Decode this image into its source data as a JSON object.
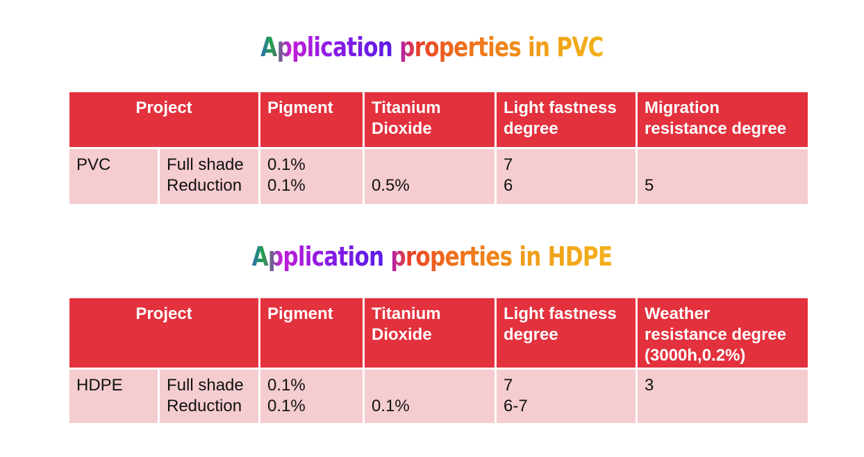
{
  "sections": [
    {
      "title": {
        "word1": "Application",
        "word2": "properties",
        "word3": "in PVC"
      },
      "headers": {
        "project": "Project",
        "pigment": "Pigment",
        "titanium_1": "Titanium",
        "titanium_2": "Dioxide",
        "light_1": "Light fastness",
        "light_2": "degree",
        "last_1": "Migration",
        "last_2": "resistance degree",
        "last_3": ""
      },
      "row": {
        "material": "PVC",
        "type_1": "Full shade",
        "type_2": "Reduction",
        "pigment_1": "0.1%",
        "pigment_2": "0.1%",
        "titanium_1": "",
        "titanium_2": "0.5%",
        "light_1": "7",
        "light_2": "6",
        "last_1": "",
        "last_2": "5"
      }
    },
    {
      "title": {
        "word1": "Application",
        "word2": "properties",
        "word3": "in HDPE"
      },
      "headers": {
        "project": "Project",
        "pigment": "Pigment",
        "titanium_1": "Titanium",
        "titanium_2": "Dioxide",
        "light_1": "Light fastness",
        "light_2": "degree",
        "last_1": "Weather",
        "last_2": "resistance degree",
        "last_3": "(3000h,0.2%)"
      },
      "row": {
        "material": "HDPE",
        "type_1": "Full shade",
        "type_2": "Reduction",
        "pigment_1": "0.1%",
        "pigment_2": "0.1%",
        "titanium_1": "",
        "titanium_2": "0.1%",
        "light_1": "7",
        "light_2": "6-7",
        "last_1": "3",
        "last_2": ""
      }
    }
  ],
  "colors": {
    "header_bg": "#e3313d",
    "cell_bg": "#f5ccd0",
    "header_text": "#ffffff"
  }
}
